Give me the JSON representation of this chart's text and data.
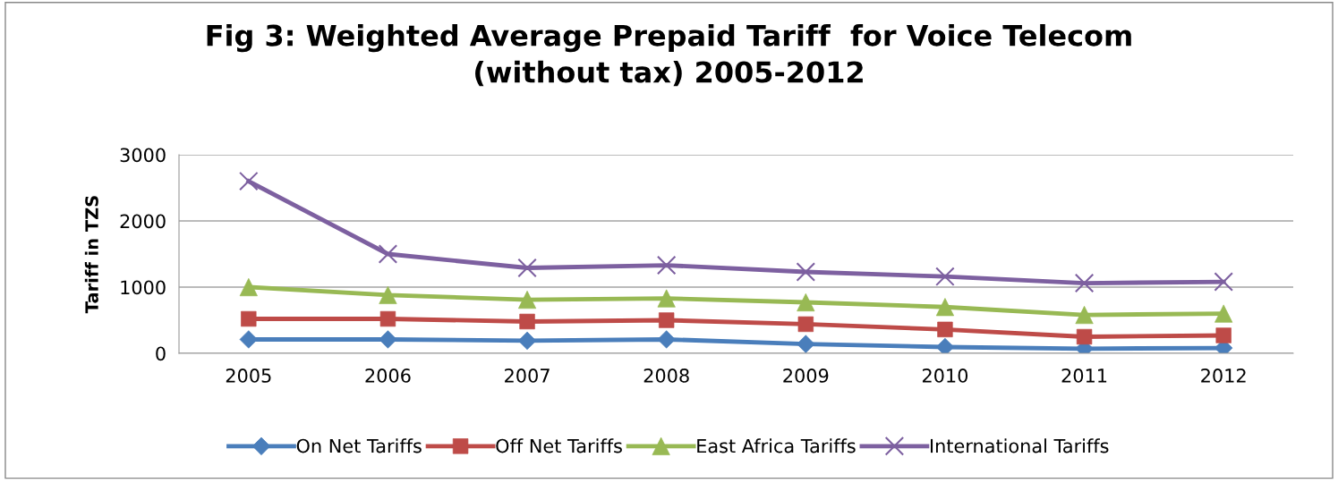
{
  "chart_data": {
    "type": "line",
    "title": "Fig 3: Weighted Average Prepaid Tariff  for Voice Telecom\n(without tax) 2005-2012",
    "ylabel": "Tariff in TZS",
    "categories": [
      "2005",
      "2006",
      "2007",
      "2008",
      "2009",
      "2010",
      "2011",
      "2012"
    ],
    "series": [
      {
        "name": "On Net Tariffs",
        "color": "#4a7ebb",
        "marker": "diamond",
        "values": [
          210,
          210,
          190,
          210,
          140,
          95,
          70,
          80
        ]
      },
      {
        "name": "Off Net Tariffs",
        "color": "#be4b48",
        "marker": "square",
        "values": [
          520,
          520,
          480,
          500,
          440,
          360,
          250,
          270
        ]
      },
      {
        "name": "East Africa Tariffs",
        "color": "#98b954",
        "marker": "triangle",
        "values": [
          1000,
          880,
          810,
          830,
          770,
          700,
          580,
          600
        ]
      },
      {
        "name": "International Tariffs",
        "color": "#7d60a0",
        "marker": "cross",
        "values": [
          2600,
          1500,
          1290,
          1330,
          1230,
          1160,
          1060,
          1080
        ]
      }
    ],
    "ylim": [
      0,
      3000
    ],
    "yticks": [
      0,
      1000,
      2000,
      3000
    ],
    "grid": "y",
    "legend": "bottom",
    "line_style": "solid"
  }
}
